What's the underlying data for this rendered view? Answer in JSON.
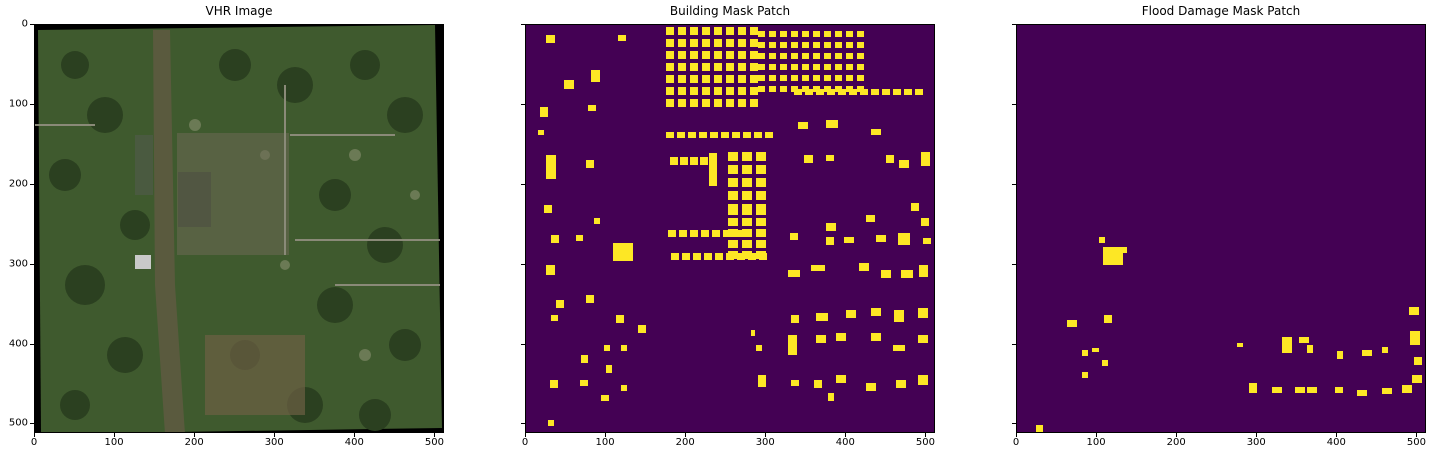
{
  "panels": [
    {
      "title": "VHR Image",
      "kind": "image"
    },
    {
      "title": "Building Mask Patch",
      "kind": "buildings"
    },
    {
      "title": "Flood Damage Mask Patch",
      "kind": "damage"
    }
  ],
  "axes": {
    "x_ticks": [
      "0",
      "100",
      "200",
      "300",
      "400",
      "500"
    ],
    "y_ticks": [
      "0",
      "100",
      "200",
      "300",
      "400",
      "500"
    ],
    "show_y_labels": [
      true,
      false,
      false
    ]
  },
  "colors": {
    "mask_background": "#440154",
    "mask_foreground": "#fde725",
    "mask_edge": "#35b779",
    "vegetation": "#3f5a2e",
    "water": "#5a5a3e"
  }
}
